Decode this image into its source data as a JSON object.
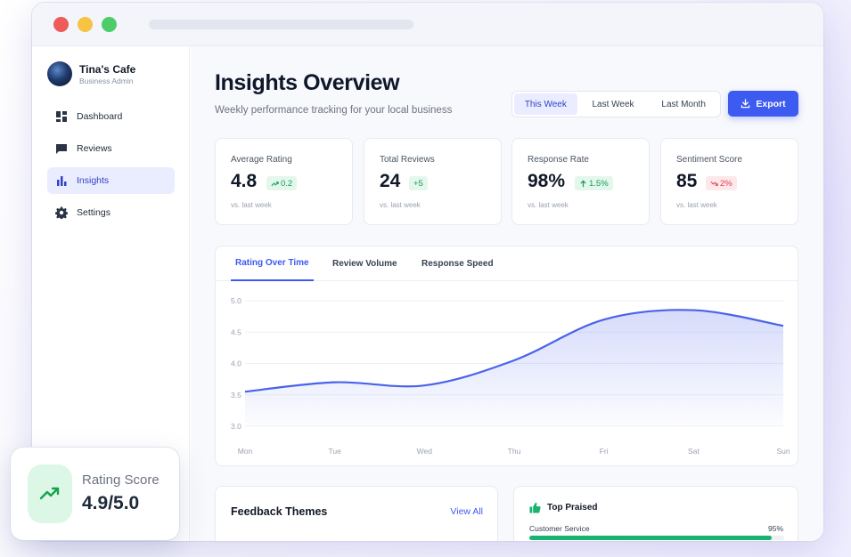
{
  "sidebar": {
    "brand_name": "Tina's Cafe",
    "brand_sub": "Business Admin",
    "items": [
      {
        "label": "Dashboard",
        "icon": "dashboard-icon",
        "active": false
      },
      {
        "label": "Reviews",
        "icon": "chat-icon",
        "active": false
      },
      {
        "label": "Insights",
        "icon": "bar-chart-icon",
        "active": true
      },
      {
        "label": "Settings",
        "icon": "gear-icon",
        "active": false
      }
    ]
  },
  "header": {
    "title": "Insights Overview",
    "subtitle": "Weekly performance tracking for your local business",
    "ranges": [
      "This Week",
      "Last Week",
      "Last Month"
    ],
    "selected_range": "This Week",
    "export_label": "Export"
  },
  "stats": [
    {
      "label": "Average Rating",
      "value": "4.8",
      "delta": "0.2",
      "trend": "up",
      "foot": "vs. last week"
    },
    {
      "label": "Total Reviews",
      "value": "24",
      "delta": "+5",
      "trend": "up",
      "foot": "vs. last week"
    },
    {
      "label": "Response Rate",
      "value": "98%",
      "delta": "1.5%",
      "trend": "up",
      "foot": "vs. last week"
    },
    {
      "label": "Sentiment Score",
      "value": "85",
      "delta": "2%",
      "trend": "down",
      "foot": "vs. last week"
    }
  ],
  "chart_tabs": [
    "Rating Over Time",
    "Review Volume",
    "Response Speed"
  ],
  "chart_data": {
    "type": "area",
    "title": "Rating Over Time",
    "categories": [
      "Mon",
      "Tue",
      "Wed",
      "Thu",
      "Fri",
      "Sat",
      "Sun"
    ],
    "values": [
      3.55,
      3.7,
      3.65,
      4.05,
      4.7,
      4.85,
      4.6
    ],
    "yticks": [
      "5.0",
      "4.5",
      "4.0",
      "3.5",
      "3.0"
    ],
    "ylim": [
      3.0,
      5.0
    ],
    "grid": true,
    "color": "#4a63e8"
  },
  "feedback": {
    "title": "Feedback Themes",
    "link": "View All"
  },
  "praised": {
    "title": "Top Praised",
    "item_label": "Customer Service",
    "item_pct": "95%",
    "item_value": 95
  },
  "float_card": {
    "label": "Rating Score",
    "value": "4.9/5.0"
  },
  "colors": {
    "accent": "#3d5af1",
    "positive": "#159a55",
    "negative": "#e23d4f",
    "bar": "#18b36f"
  }
}
